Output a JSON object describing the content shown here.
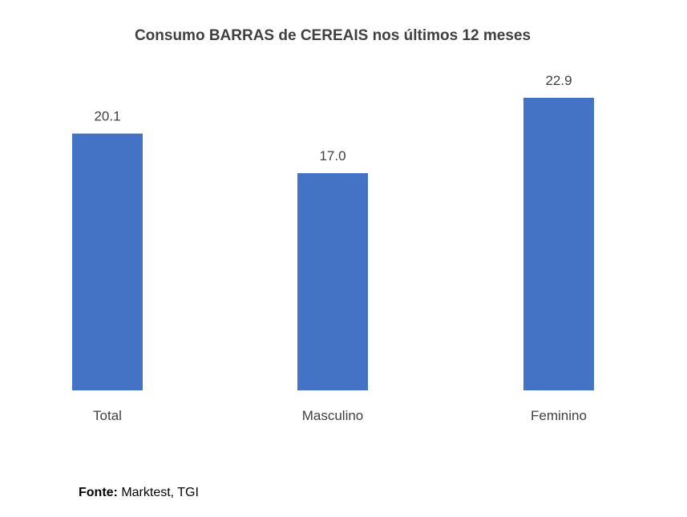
{
  "chart_data": {
    "type": "bar",
    "title": "Consumo BARRAS de CEREAIS nos últimos 12 meses",
    "categories": [
      "Total",
      "Masculino",
      "Feminino"
    ],
    "values": [
      20.1,
      17.0,
      22.9
    ],
    "value_labels": [
      "20.1",
      "17.0",
      "22.9"
    ],
    "xlabel": "",
    "ylabel": "",
    "ylim": [
      0,
      22.9
    ],
    "grid": false,
    "legend": "none",
    "bar_color": "#4472C4"
  },
  "source": {
    "label": "Fonte:",
    "text": " Marktest, TGI"
  }
}
